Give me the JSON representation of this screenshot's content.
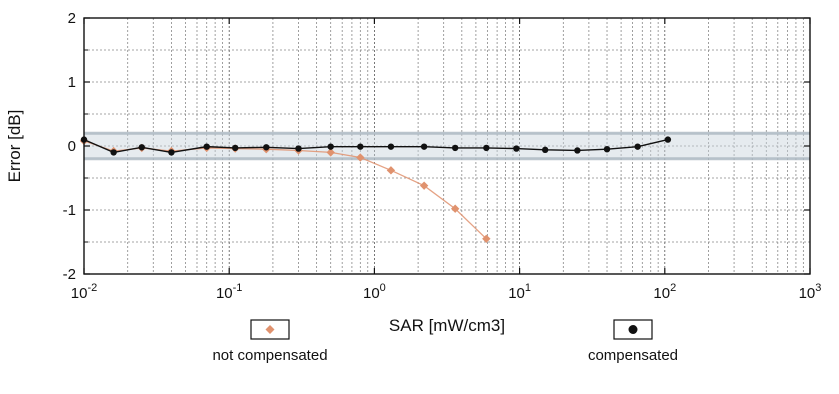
{
  "chart_data": {
    "type": "line",
    "xlabel": "SAR [mW/cm3]",
    "ylabel": "Error [dB]",
    "x_scale": "log",
    "xlim": [
      0.01,
      1000
    ],
    "ylim": [
      -2,
      2
    ],
    "grid": true,
    "x_ticks": [
      {
        "value": 0.01,
        "base": "10",
        "exp": "-2"
      },
      {
        "value": 0.1,
        "base": "10",
        "exp": "-1"
      },
      {
        "value": 1,
        "base": "10",
        "exp": "0"
      },
      {
        "value": 10,
        "base": "10",
        "exp": "1"
      },
      {
        "value": 100,
        "base": "10",
        "exp": "2"
      },
      {
        "value": 1000,
        "base": "10",
        "exp": "3"
      }
    ],
    "y_ticks": [
      {
        "value": 2,
        "label": "2"
      },
      {
        "value": 1,
        "label": "1"
      },
      {
        "value": 0,
        "label": "0"
      },
      {
        "value": -1,
        "label": "-1"
      },
      {
        "value": -2,
        "label": "-2"
      }
    ],
    "tolerance_band": [
      -0.2,
      0.2
    ],
    "legend_position": "bottom",
    "series": [
      {
        "name": "not compensated",
        "color": "#e0926e",
        "marker": "diamond",
        "x": [
          0.01,
          0.016,
          0.025,
          0.04,
          0.07,
          0.11,
          0.18,
          0.3,
          0.5,
          0.8,
          1.3,
          2.2,
          3.6,
          5.9
        ],
        "y": [
          0.08,
          -0.08,
          -0.03,
          -0.08,
          -0.03,
          -0.04,
          -0.05,
          -0.07,
          -0.1,
          -0.18,
          -0.38,
          -0.62,
          -0.98,
          -1.45
        ]
      },
      {
        "name": "compensated",
        "color": "#111111",
        "marker": "circle",
        "x": [
          0.01,
          0.016,
          0.025,
          0.04,
          0.07,
          0.11,
          0.18,
          0.3,
          0.5,
          0.8,
          1.3,
          2.2,
          3.6,
          5.9,
          9.5,
          15,
          25,
          40,
          65,
          105
        ],
        "y": [
          0.1,
          -0.1,
          -0.02,
          -0.1,
          -0.01,
          -0.03,
          -0.02,
          -0.04,
          -0.01,
          -0.01,
          -0.01,
          -0.01,
          -0.03,
          -0.03,
          -0.04,
          -0.06,
          -0.07,
          -0.05,
          -0.01,
          0.1
        ]
      }
    ]
  }
}
